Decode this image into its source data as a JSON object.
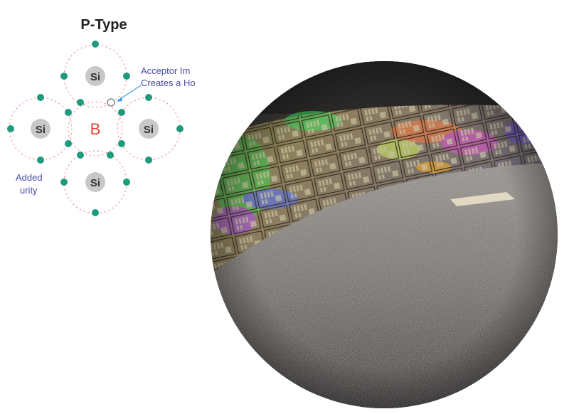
{
  "diagram": {
    "title": "P-Type",
    "atoms": {
      "top": "Si",
      "left": "Si",
      "right": "Si",
      "bottom": "Si",
      "center": "B"
    },
    "annotation_right": [
      "Acceptor Im",
      "Creates a Ho"
    ],
    "annotation_left": [
      "Added",
      "urity"
    ],
    "colors": {
      "electron": "#1e9a7c",
      "orbit": "#f08a8a",
      "atom_fill": "#c8c8c8",
      "dopant_text": "#e2403a",
      "annotation_text": "#4a4aa8",
      "arrow": "#3aa0e0"
    }
  },
  "photo": {
    "subject": "silicon-wafer-on-silicon-granules"
  }
}
